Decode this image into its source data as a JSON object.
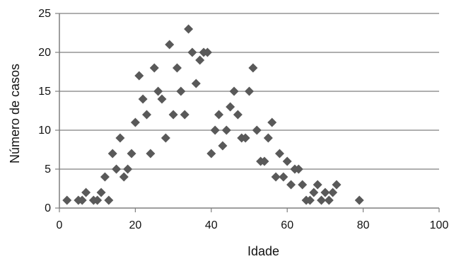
{
  "chart_data": {
    "type": "scatter",
    "title": "",
    "xlabel": "Idade",
    "ylabel": "Número de casos",
    "xlim": [
      0,
      100
    ],
    "ylim": [
      0,
      25
    ],
    "xticks": [
      0,
      20,
      40,
      60,
      80,
      100
    ],
    "yticks": [
      0,
      5,
      10,
      15,
      20,
      25
    ],
    "grid": "horizontal",
    "legend": "none",
    "marker": "diamond",
    "colors": {
      "marker": "#595959",
      "grid": "#7f7f7f",
      "axis": "#7f7f7f"
    },
    "series": [
      {
        "points": [
          {
            "x": 2,
            "y": 1
          },
          {
            "x": 5,
            "y": 1
          },
          {
            "x": 6,
            "y": 1
          },
          {
            "x": 7,
            "y": 2
          },
          {
            "x": 9,
            "y": 1
          },
          {
            "x": 10,
            "y": 1
          },
          {
            "x": 11,
            "y": 2
          },
          {
            "x": 12,
            "y": 4
          },
          {
            "x": 13,
            "y": 1
          },
          {
            "x": 14,
            "y": 7
          },
          {
            "x": 15,
            "y": 5
          },
          {
            "x": 16,
            "y": 9
          },
          {
            "x": 17,
            "y": 4
          },
          {
            "x": 18,
            "y": 5
          },
          {
            "x": 19,
            "y": 7
          },
          {
            "x": 20,
            "y": 11
          },
          {
            "x": 21,
            "y": 17
          },
          {
            "x": 22,
            "y": 14
          },
          {
            "x": 23,
            "y": 12
          },
          {
            "x": 24,
            "y": 7
          },
          {
            "x": 25,
            "y": 18
          },
          {
            "x": 26,
            "y": 15
          },
          {
            "x": 27,
            "y": 14
          },
          {
            "x": 28,
            "y": 9
          },
          {
            "x": 29,
            "y": 21
          },
          {
            "x": 30,
            "y": 12
          },
          {
            "x": 31,
            "y": 18
          },
          {
            "x": 32,
            "y": 15
          },
          {
            "x": 33,
            "y": 12
          },
          {
            "x": 34,
            "y": 23
          },
          {
            "x": 35,
            "y": 20
          },
          {
            "x": 36,
            "y": 16
          },
          {
            "x": 37,
            "y": 19
          },
          {
            "x": 38,
            "y": 20
          },
          {
            "x": 39,
            "y": 20
          },
          {
            "x": 40,
            "y": 7
          },
          {
            "x": 41,
            "y": 10
          },
          {
            "x": 42,
            "y": 12
          },
          {
            "x": 43,
            "y": 8
          },
          {
            "x": 44,
            "y": 10
          },
          {
            "x": 45,
            "y": 13
          },
          {
            "x": 46,
            "y": 15
          },
          {
            "x": 47,
            "y": 12
          },
          {
            "x": 48,
            "y": 9
          },
          {
            "x": 49,
            "y": 9
          },
          {
            "x": 50,
            "y": 15
          },
          {
            "x": 51,
            "y": 18
          },
          {
            "x": 52,
            "y": 10
          },
          {
            "x": 53,
            "y": 6
          },
          {
            "x": 54,
            "y": 6
          },
          {
            "x": 55,
            "y": 9
          },
          {
            "x": 56,
            "y": 11
          },
          {
            "x": 57,
            "y": 4
          },
          {
            "x": 58,
            "y": 7
          },
          {
            "x": 59,
            "y": 4
          },
          {
            "x": 60,
            "y": 6
          },
          {
            "x": 61,
            "y": 3
          },
          {
            "x": 62,
            "y": 5
          },
          {
            "x": 63,
            "y": 5
          },
          {
            "x": 64,
            "y": 3
          },
          {
            "x": 65,
            "y": 1
          },
          {
            "x": 66,
            "y": 1
          },
          {
            "x": 67,
            "y": 2
          },
          {
            "x": 68,
            "y": 3
          },
          {
            "x": 69,
            "y": 1
          },
          {
            "x": 70,
            "y": 2
          },
          {
            "x": 71,
            "y": 1
          },
          {
            "x": 72,
            "y": 2
          },
          {
            "x": 73,
            "y": 3
          },
          {
            "x": 79,
            "y": 1
          }
        ]
      }
    ]
  }
}
